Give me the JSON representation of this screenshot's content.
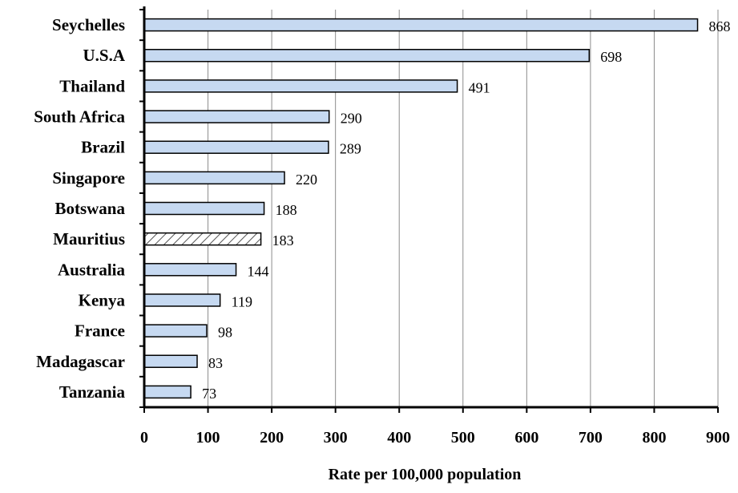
{
  "chart_data": {
    "type": "bar",
    "orientation": "horizontal",
    "title": "",
    "xlabel": "Rate per 100,000 population",
    "ylabel": "",
    "xlim": [
      0,
      900
    ],
    "xticks": [
      0,
      100,
      200,
      300,
      400,
      500,
      600,
      700,
      800,
      900
    ],
    "grid": "vertical",
    "categories": [
      "Seychelles",
      "U.S.A",
      "Thailand",
      "South Africa",
      "Brazil",
      "Singapore",
      "Botswana",
      "Mauritius",
      "Australia",
      "Kenya",
      "France",
      "Madagascar",
      "Tanzania"
    ],
    "values": [
      868,
      698,
      491,
      290,
      289,
      220,
      188,
      183,
      144,
      119,
      98,
      83,
      73
    ],
    "value_labels": [
      "868",
      "698",
      "491",
      "290",
      "289",
      "220",
      "188",
      "183",
      "144",
      "119",
      "98",
      "83",
      "73"
    ],
    "highlighted_category": "Mauritius",
    "colors": {
      "bar_fill": "#c6d9f1",
      "bar_stroke": "#000000",
      "highlight_pattern": "diagonal-hatch",
      "grid": "#8c8c8c",
      "axis": "#000000"
    }
  }
}
